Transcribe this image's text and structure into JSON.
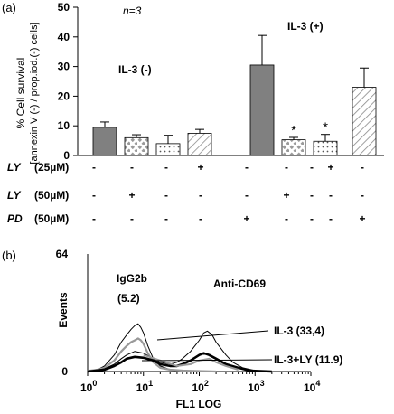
{
  "panel_a": {
    "label": "(a)",
    "n_label": "n=3",
    "annot_minus": "IL-3 (-)",
    "annot_plus": "IL-3 (+)",
    "ylabel_line1": "% Cell survival",
    "ylabel_line2": "[annexin V (-) / prop.iod.(-) cells]",
    "ytick_labels": [
      "0",
      "10",
      "20",
      "30",
      "40",
      "50"
    ],
    "significance_mark": "*",
    "treatment_rows": [
      {
        "drug": "LY",
        "dose": "(25µM)",
        "signs": [
          "-",
          "-",
          "-",
          "+",
          "-",
          "-",
          "-",
          "+",
          "-"
        ]
      },
      {
        "drug": "LY",
        "dose": "(50µM)",
        "signs": [
          "-",
          "+",
          "-",
          "-",
          "-",
          "+",
          "-",
          "-",
          "-"
        ]
      },
      {
        "drug": "PD",
        "dose": "(50µM)",
        "signs": [
          "-",
          "-",
          "-",
          "-",
          "+",
          "-",
          "-",
          "-",
          "+"
        ]
      }
    ]
  },
  "panel_b": {
    "label": "(b)",
    "ylabel": "Events",
    "xlabel": "FL1 LOG",
    "ytick_labels": [
      "0",
      "64"
    ],
    "xtick_base": "10",
    "xtick_exponents": [
      "0",
      "1",
      "2",
      "3",
      "4"
    ],
    "isotype_label": "IgG2b",
    "isotype_value": "(5.2)",
    "antibody_label": "Anti-CD69",
    "series_labels": [
      "IL-3 (33,4)",
      "IL-3+LY (11.9)"
    ]
  },
  "chart_data": [
    {
      "type": "bar",
      "ylabel": "% Cell survival [annexin V (-) / prop.iod.(-) cells]",
      "ylim": [
        0,
        50
      ],
      "grid": false,
      "groups": [
        "IL-3 (-)",
        "IL-3 (+)"
      ],
      "bars": [
        {
          "group": "IL-3 (-)",
          "treatment": "none",
          "fill": "solid",
          "value": 9.5,
          "error": 1.8,
          "significant": false
        },
        {
          "group": "IL-3 (-)",
          "treatment": "LY 50µM",
          "fill": "diamonds",
          "value": 6.0,
          "error": 1.0,
          "significant": false
        },
        {
          "group": "IL-3 (-)",
          "treatment": "LY 25µM",
          "fill": "dots",
          "value": 4.0,
          "error": 2.8,
          "significant": false
        },
        {
          "group": "IL-3 (-)",
          "treatment": "PD 50µM",
          "fill": "hatch",
          "value": 7.5,
          "error": 1.3,
          "significant": false
        },
        {
          "group": "IL-3 (+)",
          "treatment": "none",
          "fill": "solid",
          "value": 30.5,
          "error": 10.0,
          "significant": false
        },
        {
          "group": "IL-3 (+)",
          "treatment": "LY 50µM",
          "fill": "diamonds",
          "value": 5.3,
          "error": 0.8,
          "significant": true
        },
        {
          "group": "IL-3 (+)",
          "treatment": "LY 25µM",
          "fill": "dots",
          "value": 4.8,
          "error": 2.3,
          "significant": true
        },
        {
          "group": "IL-3 (+)",
          "treatment": "PD 50µM",
          "fill": "hatch",
          "value": 23.0,
          "error": 6.5,
          "significant": false
        }
      ],
      "colors": {
        "solid": "#808080",
        "pattern": "#9a9a9a"
      }
    },
    {
      "type": "line",
      "xlabel": "FL1 LOG",
      "ylabel": "Events",
      "xscale": "log",
      "xlim": [
        1,
        10000
      ],
      "ylim": [
        0,
        64
      ],
      "series": [
        {
          "name": "IgG2b",
          "color": "#000000",
          "width": 1,
          "x": [
            1,
            1.5,
            2,
            3,
            4,
            5,
            6,
            7,
            8,
            9,
            10,
            12,
            15,
            20,
            30,
            50,
            80,
            200
          ],
          "y": [
            0.5,
            1,
            3,
            9,
            16,
            20,
            23,
            25,
            26,
            24,
            21,
            14,
            7,
            3,
            1,
            0.5,
            0.3,
            0
          ]
        },
        {
          "name": "IgG2b",
          "color": "#999999",
          "width": 2.2,
          "x": [
            1,
            1.5,
            2,
            3,
            4,
            5,
            6,
            7,
            8,
            9,
            10,
            12,
            15,
            20,
            30,
            50,
            80,
            200
          ],
          "y": [
            0.3,
            1,
            2,
            6,
            11,
            14,
            16,
            17,
            18,
            17,
            15,
            10,
            5,
            2,
            1,
            0.5,
            0.3,
            0
          ]
        },
        {
          "name": "IL-3 (33,4)",
          "color": "#000000",
          "width": 1,
          "x": [
            1,
            2,
            3,
            4,
            5,
            7,
            10,
            15,
            20,
            30,
            40,
            50,
            70,
            100,
            120,
            140,
            170,
            200,
            300,
            400,
            600,
            1000,
            2000
          ],
          "y": [
            0,
            1.5,
            4,
            7,
            9,
            11,
            10,
            7,
            5,
            4,
            5,
            7,
            11,
            17,
            21,
            22,
            20,
            16,
            9,
            5,
            2,
            0.5,
            0
          ]
        },
        {
          "name": "IL-3+LY (11.9)",
          "color": "#000000",
          "width": 2.6,
          "x": [
            1,
            2,
            3,
            4,
            5,
            7,
            10,
            15,
            20,
            30,
            40,
            50,
            70,
            100,
            120,
            150,
            200,
            300,
            500,
            800,
            2000
          ],
          "y": [
            0,
            1,
            3,
            5,
            7,
            8,
            7.5,
            6,
            4,
            3,
            3,
            4,
            6,
            9,
            10,
            9,
            7,
            4,
            2,
            0.5,
            0
          ]
        },
        {
          "name": "IL-3+LY (11.9)",
          "color": "#999999",
          "width": 2,
          "x": [
            10,
            20,
            40,
            70,
            100,
            150,
            200,
            300,
            500
          ],
          "y": [
            9,
            6,
            3,
            4,
            6,
            7,
            5,
            3,
            1
          ]
        }
      ]
    }
  ]
}
